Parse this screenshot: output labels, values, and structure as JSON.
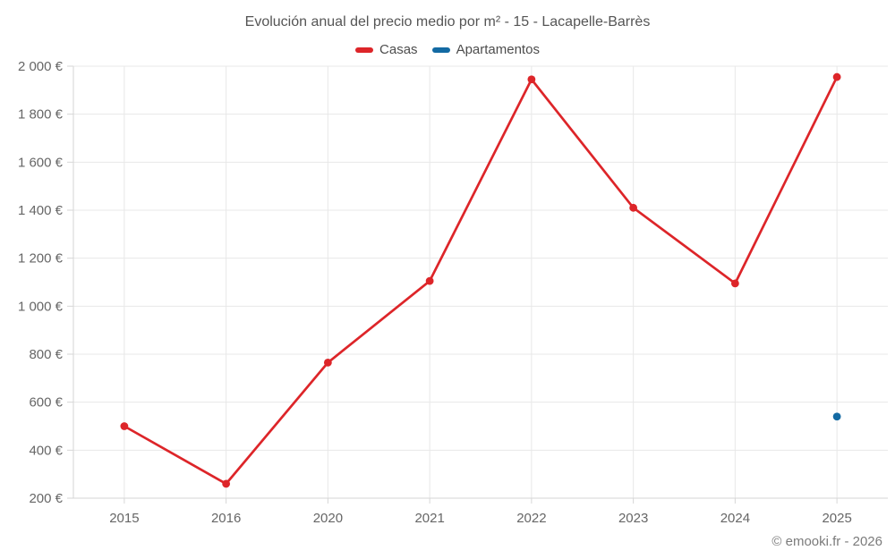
{
  "title": "Evolución anual del precio medio por m² - 15 - Lacapelle-Barrès",
  "footer": "© emooki.fr - 2026",
  "colors": {
    "casas": "#dd2529",
    "apartamentos": "#136aa3",
    "grid": "#e8e8e8",
    "axis": "#d6d6d6",
    "tick_label": "#666666",
    "title_text": "#555555",
    "legend_text": "#4d4d4d",
    "footer_text": "#7b7b7b"
  },
  "chart_data": {
    "type": "line",
    "title": "Evolución anual del precio medio por m² - 15 - Lacapelle-Barrès",
    "categories": [
      "2015",
      "2016",
      "2020",
      "2021",
      "2022",
      "2023",
      "2024",
      "2025"
    ],
    "series": [
      {
        "name": "Casas",
        "color": "#dd2529",
        "values": [
          500,
          260,
          765,
          1105,
          1945,
          1410,
          1095,
          1955
        ],
        "draw_line": true
      },
      {
        "name": "Apartamentos",
        "color": "#136aa3",
        "values": [
          null,
          null,
          null,
          null,
          null,
          null,
          null,
          540
        ],
        "draw_line": false
      }
    ],
    "xlabel": "",
    "ylabel": "",
    "ylim": [
      200,
      2000
    ],
    "ytick_step": 200,
    "ytick_labels": [
      "200 €",
      "400 €",
      "600 €",
      "800 €",
      "1 000 €",
      "1 200 €",
      "1 400 €",
      "1 600 €",
      "1 800 €",
      "2 000 €"
    ],
    "grid": true,
    "legend_position": "top",
    "currency_suffix": " €"
  }
}
